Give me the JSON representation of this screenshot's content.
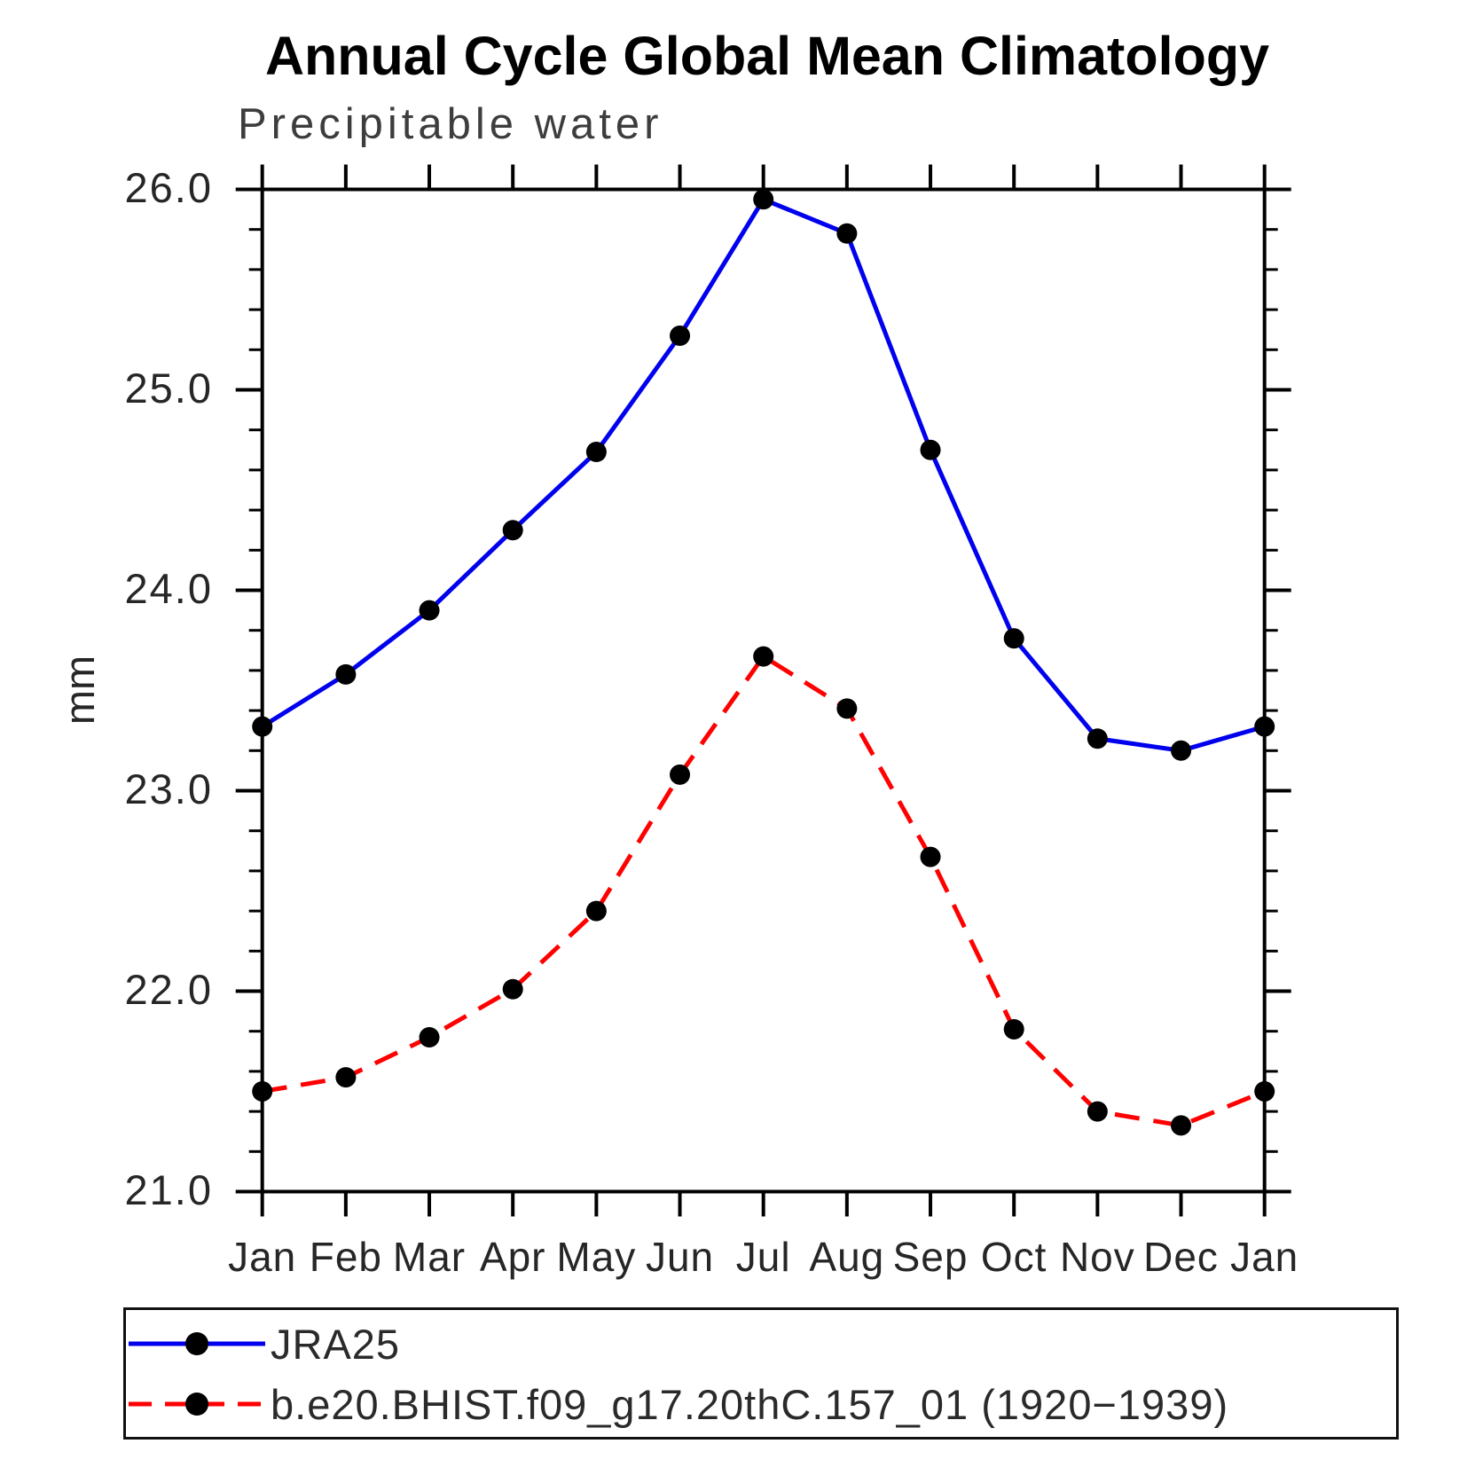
{
  "title": "Annual Cycle Global Mean Climatology",
  "subtitle": "Precipitable water",
  "chart_data": {
    "type": "line",
    "title": "Annual Cycle Global Mean Climatology",
    "subtitle": "Precipitable water",
    "ylabel": "mm",
    "xlabel": "",
    "ylim": [
      21.0,
      26.0
    ],
    "ytick_values": [
      26.0,
      25.0,
      24.0,
      23.0,
      22.0,
      21.0
    ],
    "ytick_labels": [
      "26.0",
      "25.0",
      "24.0",
      "23.0",
      "22.0",
      "21.0"
    ],
    "y_minor_step": 0.2,
    "grid": "off",
    "legend_position": "bottom-box",
    "categories": [
      "Jan",
      "Feb",
      "Mar",
      "Apr",
      "May",
      "Jun",
      "Jul",
      "Aug",
      "Sep",
      "Oct",
      "Nov",
      "Dec",
      "Jan"
    ],
    "series": [
      {
        "name": "JRA25",
        "color": "#0000ee",
        "style": "solid",
        "marker": "circle",
        "marker_color": "#000000",
        "values": [
          23.32,
          23.58,
          23.9,
          24.3,
          24.69,
          25.27,
          25.95,
          25.78,
          24.7,
          23.76,
          23.26,
          23.2,
          23.32
        ]
      },
      {
        "name": "b.e20.BHIST.f09_g17.20thC.157_01 (1920−1939)",
        "color": "#ff0000",
        "style": "dashed",
        "marker": "circle",
        "marker_color": "#000000",
        "values": [
          21.5,
          21.57,
          21.77,
          22.01,
          22.4,
          23.08,
          23.67,
          23.41,
          22.67,
          21.81,
          21.4,
          21.33,
          21.5
        ]
      }
    ]
  },
  "colors": {
    "axis": "#000000",
    "frame": "#000000",
    "marker": "#000000",
    "background": "#ffffff"
  }
}
